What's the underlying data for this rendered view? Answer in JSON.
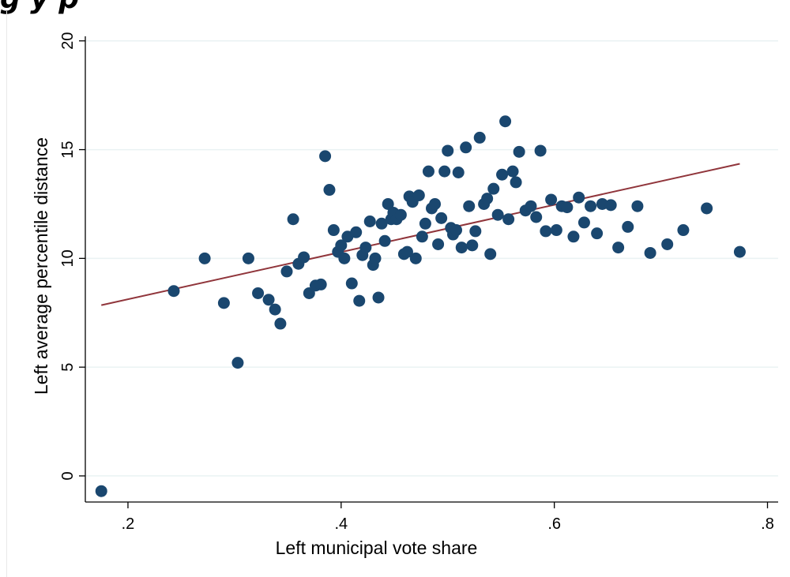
{
  "header": {
    "title_fragment": "g        y                                      p"
  },
  "chart_data": {
    "type": "scatter",
    "title": "",
    "xlabel": "Left municipal vote share",
    "ylabel": "Left average percentile distance",
    "xlim": [
      0.16,
      0.81
    ],
    "ylim": [
      -1.2,
      20.5
    ],
    "x_ticks": [
      0.2,
      0.4,
      0.6,
      0.8
    ],
    "x_tick_labels": [
      ".2",
      ".4",
      ".6",
      ".8"
    ],
    "y_ticks": [
      0,
      5,
      10,
      15,
      20
    ],
    "y_tick_labels": [
      "0",
      "5",
      "10",
      "15",
      "20"
    ],
    "grid": true,
    "colors": {
      "points": "#1a476f",
      "fit_line": "#90353b",
      "grid": "#eaf2f3",
      "axis": "#000000"
    },
    "points": [
      [
        0.175,
        -0.7
      ],
      [
        0.243,
        8.5
      ],
      [
        0.272,
        10.0
      ],
      [
        0.29,
        7.95
      ],
      [
        0.303,
        5.2
      ],
      [
        0.313,
        10.0
      ],
      [
        0.322,
        8.4
      ],
      [
        0.332,
        8.1
      ],
      [
        0.338,
        7.65
      ],
      [
        0.343,
        7.0
      ],
      [
        0.349,
        9.4
      ],
      [
        0.355,
        11.8
      ],
      [
        0.36,
        9.75
      ],
      [
        0.365,
        10.05
      ],
      [
        0.37,
        8.4
      ],
      [
        0.376,
        8.75
      ],
      [
        0.381,
        8.8
      ],
      [
        0.385,
        14.7
      ],
      [
        0.389,
        13.15
      ],
      [
        0.393,
        11.3
      ],
      [
        0.397,
        10.3
      ],
      [
        0.4,
        10.6
      ],
      [
        0.403,
        10.0
      ],
      [
        0.406,
        11.0
      ],
      [
        0.41,
        8.85
      ],
      [
        0.414,
        11.2
      ],
      [
        0.417,
        8.05
      ],
      [
        0.42,
        10.15
      ],
      [
        0.423,
        10.5
      ],
      [
        0.427,
        11.7
      ],
      [
        0.43,
        9.7
      ],
      [
        0.432,
        10.0
      ],
      [
        0.435,
        8.2
      ],
      [
        0.438,
        11.6
      ],
      [
        0.441,
        10.8
      ],
      [
        0.444,
        12.5
      ],
      [
        0.447,
        11.8
      ],
      [
        0.449,
        12.1
      ],
      [
        0.452,
        11.8
      ],
      [
        0.456,
        12.0
      ],
      [
        0.459,
        10.2
      ],
      [
        0.462,
        10.3
      ],
      [
        0.464,
        12.85
      ],
      [
        0.467,
        12.6
      ],
      [
        0.47,
        10.0
      ],
      [
        0.473,
        12.9
      ],
      [
        0.476,
        11.0
      ],
      [
        0.479,
        11.6
      ],
      [
        0.482,
        14.0
      ],
      [
        0.485,
        12.3
      ],
      [
        0.488,
        12.5
      ],
      [
        0.491,
        10.65
      ],
      [
        0.494,
        11.85
      ],
      [
        0.497,
        14.0
      ],
      [
        0.5,
        14.95
      ],
      [
        0.503,
        11.4
      ],
      [
        0.505,
        11.1
      ],
      [
        0.508,
        11.3
      ],
      [
        0.51,
        13.95
      ],
      [
        0.513,
        10.5
      ],
      [
        0.517,
        15.1
      ],
      [
        0.52,
        12.4
      ],
      [
        0.523,
        10.6
      ],
      [
        0.526,
        11.25
      ],
      [
        0.53,
        15.55
      ],
      [
        0.534,
        12.5
      ],
      [
        0.537,
        12.75
      ],
      [
        0.54,
        10.2
      ],
      [
        0.543,
        13.2
      ],
      [
        0.547,
        12.0
      ],
      [
        0.551,
        13.85
      ],
      [
        0.554,
        16.3
      ],
      [
        0.557,
        11.8
      ],
      [
        0.561,
        14.0
      ],
      [
        0.564,
        13.5
      ],
      [
        0.567,
        14.9
      ],
      [
        0.573,
        12.2
      ],
      [
        0.578,
        12.4
      ],
      [
        0.583,
        11.9
      ],
      [
        0.587,
        14.95
      ],
      [
        0.592,
        11.25
      ],
      [
        0.597,
        12.7
      ],
      [
        0.602,
        11.3
      ],
      [
        0.607,
        12.4
      ],
      [
        0.612,
        12.35
      ],
      [
        0.618,
        11.0
      ],
      [
        0.623,
        12.8
      ],
      [
        0.628,
        11.65
      ],
      [
        0.634,
        12.4
      ],
      [
        0.64,
        11.15
      ],
      [
        0.645,
        12.5
      ],
      [
        0.653,
        12.45
      ],
      [
        0.66,
        10.5
      ],
      [
        0.669,
        11.45
      ],
      [
        0.678,
        12.4
      ],
      [
        0.69,
        10.25
      ],
      [
        0.706,
        10.65
      ],
      [
        0.721,
        11.3
      ],
      [
        0.743,
        12.3
      ],
      [
        0.774,
        10.3
      ]
    ],
    "fit_line": {
      "x": [
        0.175,
        0.774
      ],
      "y": [
        7.85,
        14.35
      ]
    }
  }
}
